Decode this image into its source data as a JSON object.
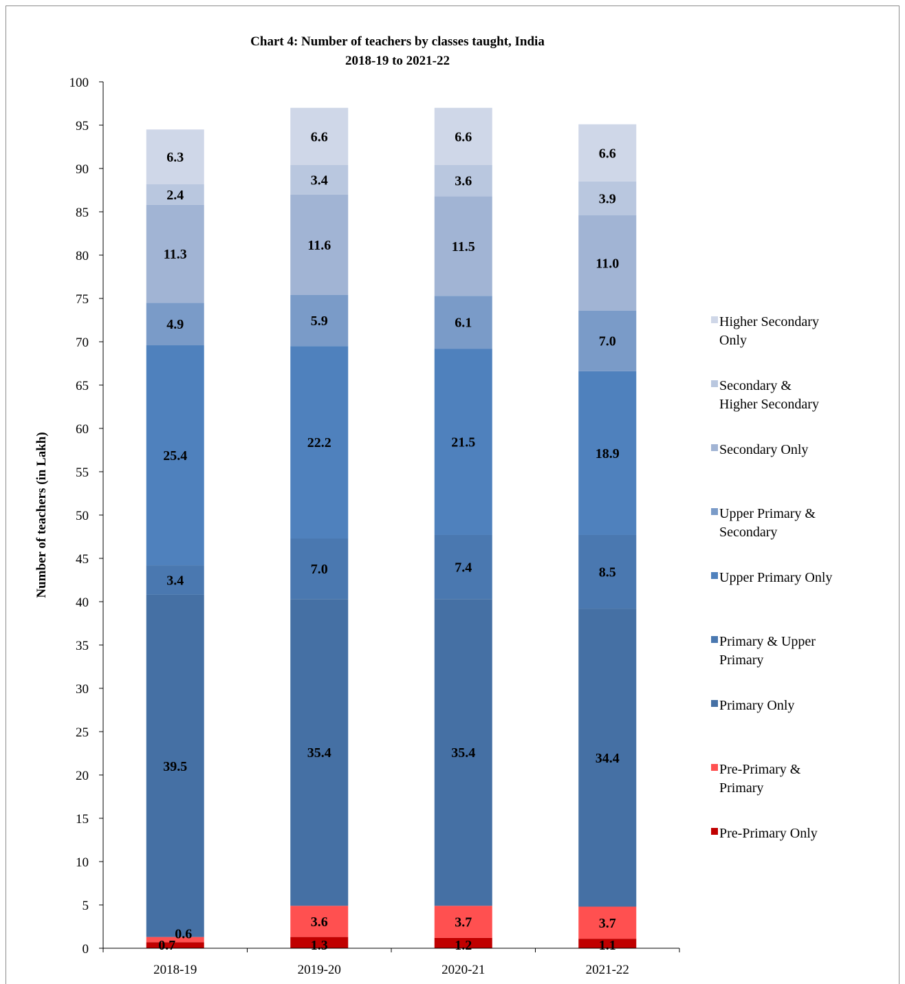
{
  "chart_data": {
    "type": "bar",
    "stacked": true,
    "title_lines": [
      "Chart 4: Number of teachers by classes taught, India",
      "2018-19 to  2021-22"
    ],
    "xlabel": "",
    "ylabel": "Number of teachers (in Lakh)",
    "ylim": [
      0,
      100
    ],
    "yticks": [
      0,
      5,
      10,
      15,
      20,
      25,
      30,
      35,
      40,
      45,
      50,
      55,
      60,
      65,
      70,
      75,
      80,
      85,
      90,
      95,
      100
    ],
    "categories": [
      "2018-19",
      "2019-20",
      "2020-21",
      "2021-22"
    ],
    "legend_position": "right",
    "grid": false,
    "series": [
      {
        "name": "Pre-Primary Only",
        "legend_lines": [
          "Pre-Primary Only"
        ],
        "color": "#c00000",
        "values": [
          0.7,
          1.3,
          1.2,
          1.1
        ],
        "labels": [
          "0.7",
          "1.3",
          "1.2",
          "1.1"
        ]
      },
      {
        "name": "Pre-Primary & Primary",
        "legend_lines": [
          "Pre-Primary &",
          "Primary"
        ],
        "color": "#ff5050",
        "values": [
          0.6,
          3.6,
          3.7,
          3.7
        ],
        "labels": [
          "0.6",
          "3.6",
          "3.7",
          "3.7"
        ]
      },
      {
        "name": "Primary Only",
        "legend_lines": [
          "Primary Only"
        ],
        "color": "#4570a4",
        "values": [
          39.5,
          35.4,
          35.4,
          34.4
        ],
        "labels": [
          "39.5",
          "35.4",
          "35.4",
          "34.4"
        ]
      },
      {
        "name": "Primary & Upper Primary",
        "legend_lines": [
          "Primary & Upper",
          "Primary"
        ],
        "color": "#4a78b0",
        "values": [
          3.4,
          7.0,
          7.4,
          8.5
        ],
        "labels": [
          "3.4",
          "7.0",
          "7.4",
          "8.5"
        ]
      },
      {
        "name": "Upper Primary Only",
        "legend_lines": [
          "Upper Primary Only"
        ],
        "color": "#4f81bd",
        "values": [
          25.4,
          22.2,
          21.5,
          18.9
        ],
        "labels": [
          "25.4",
          "22.2",
          "21.5",
          "18.9"
        ]
      },
      {
        "name": "Upper Primary & Secondary",
        "legend_lines": [
          "Upper Primary &",
          "Secondary"
        ],
        "color": "#7a9bc8",
        "values": [
          4.9,
          5.9,
          6.1,
          7.0
        ],
        "labels": [
          "4.9",
          "5.9",
          "6.1",
          "7.0"
        ]
      },
      {
        "name": "Secondary Only",
        "legend_lines": [
          "Secondary Only"
        ],
        "color": "#a1b4d4",
        "values": [
          11.3,
          11.6,
          11.5,
          11.0
        ],
        "labels": [
          "11.3",
          "11.6",
          "11.5",
          "11.0"
        ]
      },
      {
        "name": "Secondary & Higher Secondary",
        "legend_lines": [
          "Secondary &",
          "Higher Secondary"
        ],
        "color": "#b9c7df",
        "values": [
          2.4,
          3.4,
          3.6,
          3.9
        ],
        "labels": [
          "2.4",
          "3.4",
          "3.6",
          "3.9"
        ]
      },
      {
        "name": "Higher Secondary Only",
        "legend_lines": [
          "Higher Secondary",
          "Only"
        ],
        "color": "#cfd7e8",
        "values": [
          6.3,
          6.6,
          6.6,
          6.6
        ],
        "labels": [
          "6.3",
          "6.6",
          "6.6",
          "6.6"
        ]
      }
    ]
  }
}
